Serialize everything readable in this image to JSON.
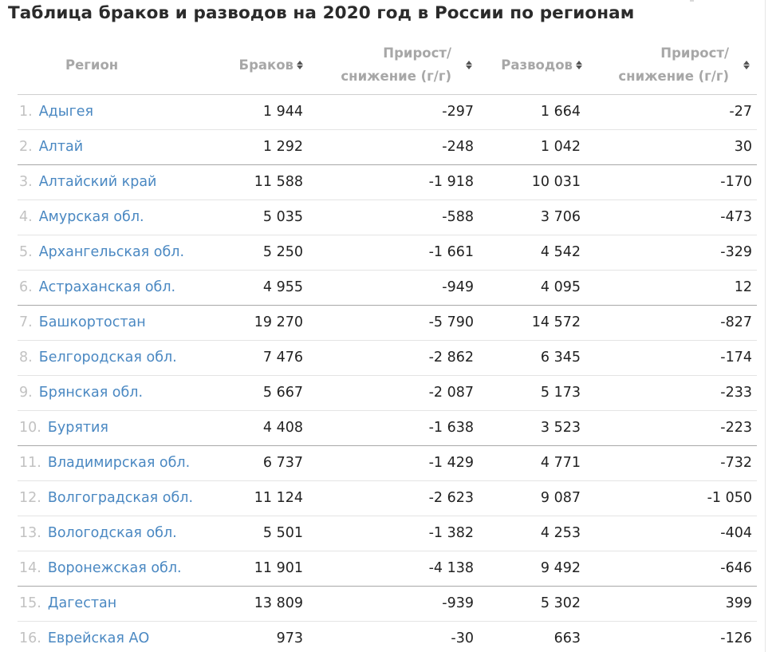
{
  "title": "Таблица браков и разводов на 2020 год в России по регионам",
  "columns": {
    "region": "Регион",
    "marriages": "Браков",
    "marriages_change_line1": "Прирост/",
    "marriages_change_line2": "снижение (г/г)",
    "divorces": "Разводов",
    "divorces_change_line1": "Прирост/",
    "divorces_change_line2": "снижение (г/г)"
  },
  "rows": [
    {
      "idx": "1.",
      "region": "Адыгея",
      "marriages": "1 944",
      "marriages_change": "-297",
      "divorces": "1 664",
      "divorces_change": "-27"
    },
    {
      "idx": "2.",
      "region": "Алтай",
      "marriages": "1 292",
      "marriages_change": "-248",
      "divorces": "1 042",
      "divorces_change": "30"
    },
    {
      "idx": "3.",
      "region": "Алтайский край",
      "marriages": "11 588",
      "marriages_change": "-1 918",
      "divorces": "10 031",
      "divorces_change": "-170"
    },
    {
      "idx": "4.",
      "region": "Амурская обл.",
      "marriages": "5 035",
      "marriages_change": "-588",
      "divorces": "3 706",
      "divorces_change": "-473"
    },
    {
      "idx": "5.",
      "region": "Архангельская обл.",
      "marriages": "5 250",
      "marriages_change": "-1 661",
      "divorces": "4 542",
      "divorces_change": "-329"
    },
    {
      "idx": "6.",
      "region": "Астраханская обл.",
      "marriages": "4 955",
      "marriages_change": "-949",
      "divorces": "4 095",
      "divorces_change": "12"
    },
    {
      "idx": "7.",
      "region": "Башкортостан",
      "marriages": "19 270",
      "marriages_change": "-5 790",
      "divorces": "14 572",
      "divorces_change": "-827"
    },
    {
      "idx": "8.",
      "region": "Белгородская обл.",
      "marriages": "7 476",
      "marriages_change": "-2 862",
      "divorces": "6 345",
      "divorces_change": "-174"
    },
    {
      "idx": "9.",
      "region": "Брянская обл.",
      "marriages": "5 667",
      "marriages_change": "-2 087",
      "divorces": "5 173",
      "divorces_change": "-233"
    },
    {
      "idx": "10.",
      "region": "Бурятия",
      "marriages": "4 408",
      "marriages_change": "-1 638",
      "divorces": "3 523",
      "divorces_change": "-223"
    },
    {
      "idx": "11.",
      "region": "Владимирская обл.",
      "marriages": "6 737",
      "marriages_change": "-1 429",
      "divorces": "4 771",
      "divorces_change": "-732"
    },
    {
      "idx": "12.",
      "region": "Волгоградская обл.",
      "marriages": "11 124",
      "marriages_change": "-2 623",
      "divorces": "9 087",
      "divorces_change": "-1 050"
    },
    {
      "idx": "13.",
      "region": "Вологодская обл.",
      "marriages": "5 501",
      "marriages_change": "-1 382",
      "divorces": "4 253",
      "divorces_change": "-404"
    },
    {
      "idx": "14.",
      "region": "Воронежская обл.",
      "marriages": "11 901",
      "marriages_change": "-4 138",
      "divorces": "9 492",
      "divorces_change": "-646"
    },
    {
      "idx": "15.",
      "region": "Дагестан",
      "marriages": "13 809",
      "marriages_change": "-939",
      "divorces": "5 302",
      "divorces_change": "399"
    },
    {
      "idx": "16.",
      "region": "Еврейская АО",
      "marriages": "973",
      "marriages_change": "-30",
      "divorces": "663",
      "divorces_change": "-126"
    }
  ],
  "colors": {
    "link": "#4a88c2",
    "header_text": "#a7a7a7",
    "index_text": "#c2c2c2",
    "value_text": "#222222"
  },
  "icons": {
    "sort": "sort-arrows-icon"
  }
}
